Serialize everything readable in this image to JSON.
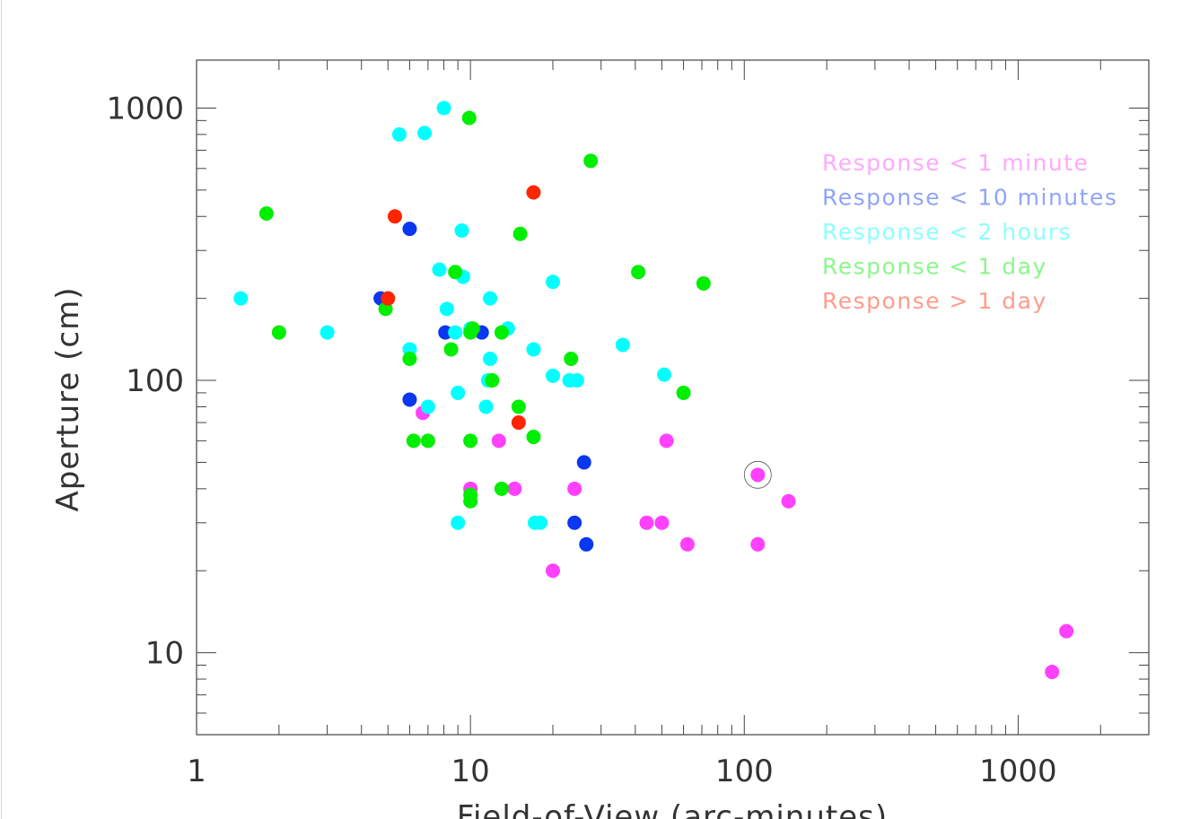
{
  "chart_data": {
    "type": "scatter",
    "xlabel": "Field-of-View (arc-minutes)",
    "ylabel": "Aperture (cm)",
    "x_scale": "log",
    "y_scale": "log",
    "xlim": [
      1,
      3000
    ],
    "ylim": [
      5,
      1500
    ],
    "x_ticks": [
      1,
      10,
      100,
      1000
    ],
    "x_tick_labels": [
      "1",
      "10",
      "100",
      "1000"
    ],
    "y_ticks": [
      10,
      100,
      1000
    ],
    "y_tick_labels": [
      "10",
      "100",
      "1000"
    ],
    "grid": false,
    "legend_position": "top-right",
    "series": [
      {
        "name": "Response < 1 minute",
        "color": "#ff40ff",
        "points": [
          [
            6.7,
            76
          ],
          [
            10,
            40
          ],
          [
            12.7,
            60
          ],
          [
            14.5,
            40
          ],
          [
            20,
            20
          ],
          [
            24,
            40
          ],
          [
            44,
            30
          ],
          [
            50,
            30
          ],
          [
            52,
            60
          ],
          [
            62,
            25
          ],
          [
            112,
            45
          ],
          [
            112,
            25
          ],
          [
            145,
            36
          ],
          [
            1330,
            8.5
          ],
          [
            1500,
            12
          ]
        ]
      },
      {
        "name": "Response < 10 minutes",
        "color": "#0a37f0",
        "points": [
          [
            4.7,
            200
          ],
          [
            6,
            360
          ],
          [
            6,
            85
          ],
          [
            8.1,
            150
          ],
          [
            11,
            150
          ],
          [
            24,
            30
          ],
          [
            26,
            50
          ],
          [
            26.5,
            25
          ]
        ]
      },
      {
        "name": "Response < 2 hours",
        "color": "#00ffff",
        "points": [
          [
            1.45,
            200
          ],
          [
            3,
            150
          ],
          [
            5.5,
            800
          ],
          [
            6,
            130
          ],
          [
            6.8,
            810
          ],
          [
            7,
            80
          ],
          [
            7.7,
            255
          ],
          [
            8,
            1000
          ],
          [
            8.2,
            183
          ],
          [
            8.8,
            150
          ],
          [
            9,
            90
          ],
          [
            9,
            30
          ],
          [
            9.3,
            355
          ],
          [
            9.4,
            240
          ],
          [
            10,
            155
          ],
          [
            11.4,
            80
          ],
          [
            11.6,
            100
          ],
          [
            11.8,
            120
          ],
          [
            11.8,
            200
          ],
          [
            13.7,
            155
          ],
          [
            17,
            130
          ],
          [
            17.2,
            30
          ],
          [
            18,
            30
          ],
          [
            20,
            230
          ],
          [
            20,
            104
          ],
          [
            23,
            100
          ],
          [
            24.5,
            100
          ],
          [
            36,
            135
          ],
          [
            51,
            105
          ]
        ]
      },
      {
        "name": "Response < 1 day",
        "color": "#00ee00",
        "points": [
          [
            1.8,
            410
          ],
          [
            2,
            150
          ],
          [
            4.9,
            183
          ],
          [
            6,
            120
          ],
          [
            6.2,
            60
          ],
          [
            7,
            60
          ],
          [
            8.5,
            130
          ],
          [
            8.8,
            250
          ],
          [
            9.9,
            920
          ],
          [
            10,
            60
          ],
          [
            10,
            150
          ],
          [
            10,
            38
          ],
          [
            10,
            36
          ],
          [
            10.2,
            155
          ],
          [
            12,
            100
          ],
          [
            13,
            150
          ],
          [
            13,
            40
          ],
          [
            15,
            80
          ],
          [
            15.2,
            345
          ],
          [
            17,
            62
          ],
          [
            23.3,
            120
          ],
          [
            27.5,
            640
          ],
          [
            41,
            250
          ],
          [
            60,
            90
          ],
          [
            71,
            227
          ]
        ]
      },
      {
        "name": "Response > 1 day",
        "color": "#ff2500",
        "points": [
          [
            5,
            200
          ],
          [
            5.3,
            400
          ],
          [
            15,
            70
          ],
          [
            17,
            490
          ]
        ]
      }
    ],
    "annotations": [
      {
        "type": "circle-marker",
        "x": 112,
        "y": 45
      }
    ]
  }
}
